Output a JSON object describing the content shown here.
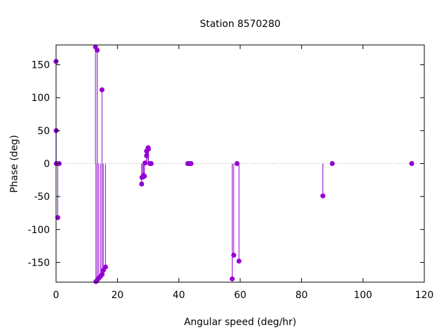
{
  "chart_data": {
    "type": "scatter",
    "style": "impulse-stem",
    "title": "Station 8570280",
    "xlabel": "Angular speed (deg/hr)",
    "ylabel": "Phase (deg)",
    "xlim": [
      0,
      120
    ],
    "ylim": [
      -180,
      180
    ],
    "xticks": [
      0,
      20,
      40,
      60,
      80,
      100,
      120
    ],
    "yticks": [
      -150,
      -100,
      -50,
      0,
      50,
      100,
      150
    ],
    "zero_line": "dotted",
    "grid": false,
    "legend": "none",
    "color": "#9400d3",
    "points": [
      {
        "x": 0.0,
        "y": 155
      },
      {
        "x": 0.04,
        "y": 50
      },
      {
        "x": 0.08,
        "y": 0
      },
      {
        "x": 0.55,
        "y": -82
      },
      {
        "x": 1.0,
        "y": 0
      },
      {
        "x": 12.85,
        "y": 177
      },
      {
        "x": 13.4,
        "y": 172
      },
      {
        "x": 13.0,
        "y": -179
      },
      {
        "x": 13.4,
        "y": -177
      },
      {
        "x": 13.9,
        "y": -174
      },
      {
        "x": 14.5,
        "y": -171
      },
      {
        "x": 14.96,
        "y": 112
      },
      {
        "x": 15.0,
        "y": -168
      },
      {
        "x": 15.4,
        "y": -162
      },
      {
        "x": 16.1,
        "y": -157
      },
      {
        "x": 27.9,
        "y": -31
      },
      {
        "x": 28.0,
        "y": -21
      },
      {
        "x": 28.4,
        "y": -20
      },
      {
        "x": 28.5,
        "y": -18
      },
      {
        "x": 28.8,
        "y": -19
      },
      {
        "x": 29.0,
        "y": 1
      },
      {
        "x": 29.5,
        "y": 12
      },
      {
        "x": 29.5,
        "y": 19
      },
      {
        "x": 30.0,
        "y": 24
      },
      {
        "x": 30.1,
        "y": 22
      },
      {
        "x": 30.6,
        "y": 0
      },
      {
        "x": 31.0,
        "y": 0
      },
      {
        "x": 42.9,
        "y": 0
      },
      {
        "x": 43.5,
        "y": 0
      },
      {
        "x": 44.0,
        "y": 0
      },
      {
        "x": 57.4,
        "y": -175
      },
      {
        "x": 57.9,
        "y": -139
      },
      {
        "x": 58.98,
        "y": 0
      },
      {
        "x": 59.6,
        "y": -148
      },
      {
        "x": 86.95,
        "y": -49
      },
      {
        "x": 90.0,
        "y": 0
      },
      {
        "x": 115.9,
        "y": 0
      }
    ]
  }
}
